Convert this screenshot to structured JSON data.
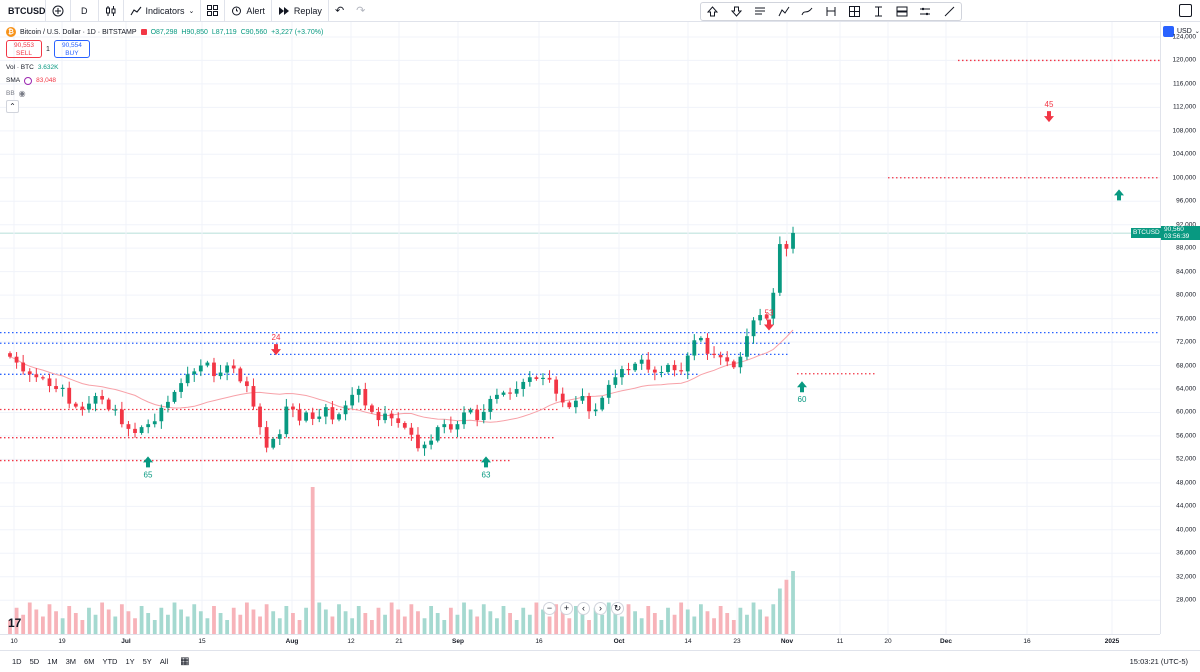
{
  "toolbar": {
    "symbol": "BTCUSD",
    "interval": "D",
    "indicators_label": "Indicators",
    "alert_label": "Alert",
    "replay_label": "Replay"
  },
  "legend": {
    "title": "Bitcoin / U.S. Dollar · 1D · BITSTAMP",
    "open": "O87,298",
    "high": "H90,850",
    "low": "L87,119",
    "close": "C90,560",
    "change": "+3,227 (+3.70%)",
    "sell_price": "90,553",
    "sell_label": "SELL",
    "spread": "1",
    "buy_price": "90,554",
    "buy_label": "BUY",
    "vol_label": "Vol · BTC",
    "vol_value": "3.632K",
    "sma_label": "SMA",
    "sma_value": "83,048",
    "bb_label": "BB"
  },
  "price_scale": {
    "currency": "USD",
    "labels": [
      "124,000",
      "120,000",
      "116,000",
      "112,000",
      "108,000",
      "104,000",
      "100,000",
      "96,000",
      "92,000",
      "88,000",
      "84,000",
      "80,000",
      "76,000",
      "72,000",
      "68,000",
      "64,000",
      "60,000",
      "56,000",
      "52,000",
      "48,000",
      "44,000",
      "40,000",
      "36,000",
      "32,000",
      "28,000"
    ],
    "current_symbol": "BTCUSD",
    "current_price": "90,560",
    "countdown": "03:56:39"
  },
  "time_axis": {
    "labels": [
      "10",
      "19",
      "Jul",
      "15",
      "Aug",
      "12",
      "21",
      "Sep",
      "16",
      "Oct",
      "14",
      "23",
      "Nov",
      "11",
      "20",
      "Dec",
      "16",
      "2025"
    ]
  },
  "markers": {
    "m24": "24",
    "m65": "65",
    "m63": "63",
    "m53": "53",
    "m60": "60",
    "m45": "45"
  },
  "ranges": [
    "1D",
    "5D",
    "1M",
    "3M",
    "6M",
    "YTD",
    "1Y",
    "5Y",
    "All"
  ],
  "clock": "15:03:21 (UTC-5)",
  "colors": {
    "up": "#089981",
    "down": "#f23645",
    "sma": "#f7a1a8",
    "blue_line": "#2962ff"
  },
  "chart_data": {
    "type": "candlestick",
    "title": "Bitcoin / U.S. Dollar · 1D · BITSTAMP",
    "ylim": [
      26000,
      128000
    ],
    "x_range": [
      "Jun 10",
      "Jan 2025"
    ],
    "close_approx": [
      69500,
      68500,
      67000,
      66500,
      66000,
      65800,
      64500,
      64000,
      64200,
      61500,
      61000,
      60500,
      61500,
      62800,
      62200,
      60500,
      60500,
      58000,
      57200,
      56500,
      57500,
      58000,
      58500,
      60800,
      61800,
      63500,
      65000,
      66500,
      67000,
      68000,
      68500,
      66200,
      66800,
      68000,
      67500,
      65300,
      64500,
      61000,
      57500,
      54000,
      55500,
      56300,
      61000,
      60500,
      58600,
      60000,
      58900,
      59300,
      60900,
      58800,
      59700,
      61200,
      63000,
      64000,
      61200,
      60100,
      58700,
      59800,
      59000,
      58200,
      57400,
      56200,
      53900,
      54500,
      55200,
      57500,
      58000,
      57100,
      58000,
      60000,
      60500,
      58700,
      60100,
      62300,
      63000,
      63400,
      63200,
      64000,
      65200,
      66000,
      65700,
      65900,
      65600,
      63200,
      61700,
      60900,
      62000,
      62800,
      60200,
      60500,
      62500,
      64700,
      66000,
      67400,
      67200,
      68300,
      69000,
      67300,
      66800,
      66900,
      68100,
      67200,
      67000,
      69700,
      72300,
      72700,
      70000,
      69800,
      69400,
      68700,
      67700,
      69500,
      73000,
      75700,
      76600,
      76000,
      80400,
      88700,
      87900,
      90600
    ],
    "sma_period": 20,
    "sma_last": 83048,
    "volume_label": "Vol · BTC"
  }
}
